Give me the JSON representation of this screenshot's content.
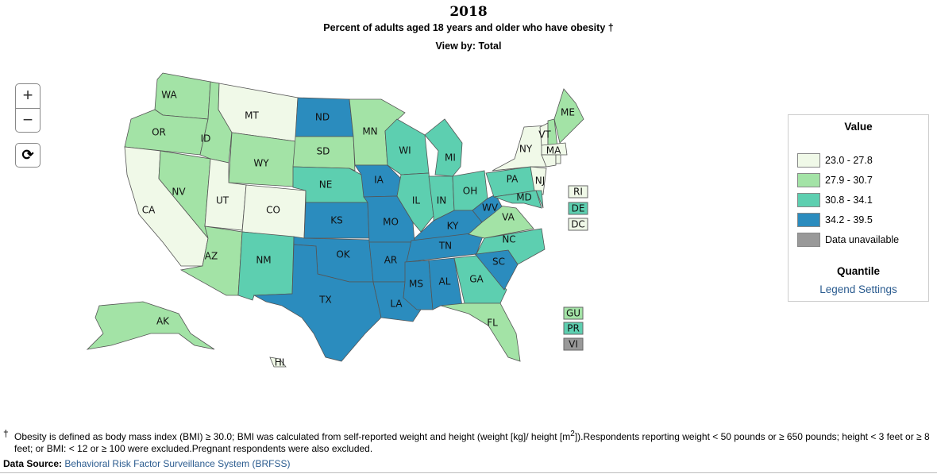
{
  "header": {
    "year": "2018",
    "subtitle": "Percent of adults aged 18 years and older who have obesity †",
    "view_by": "View by: Total"
  },
  "controls": {
    "zoom_in": "+",
    "zoom_out": "−",
    "reset": "⟳"
  },
  "legend": {
    "title": "Value",
    "bins": [
      {
        "label": "23.0 - 27.8",
        "color": "#f0f9e8"
      },
      {
        "label": "27.9 - 30.7",
        "color": "#a3e3a6"
      },
      {
        "label": "30.8 - 34.1",
        "color": "#5dcfb0"
      },
      {
        "label": "34.2 - 39.5",
        "color": "#2b8cbe"
      },
      {
        "label": "Data unavailable",
        "color": "#999999"
      }
    ],
    "method": "Quantile",
    "settings_link": "Legend Settings"
  },
  "states": [
    {
      "abbr": "WA",
      "bin": 1
    },
    {
      "abbr": "OR",
      "bin": 1
    },
    {
      "abbr": "CA",
      "bin": 0
    },
    {
      "abbr": "NV",
      "bin": 1
    },
    {
      "abbr": "ID",
      "bin": 1
    },
    {
      "abbr": "MT",
      "bin": 0
    },
    {
      "abbr": "WY",
      "bin": 1
    },
    {
      "abbr": "UT",
      "bin": 0
    },
    {
      "abbr": "CO",
      "bin": 0
    },
    {
      "abbr": "AZ",
      "bin": 1
    },
    {
      "abbr": "NM",
      "bin": 2
    },
    {
      "abbr": "ND",
      "bin": 3
    },
    {
      "abbr": "SD",
      "bin": 1
    },
    {
      "abbr": "NE",
      "bin": 2
    },
    {
      "abbr": "KS",
      "bin": 3
    },
    {
      "abbr": "OK",
      "bin": 3
    },
    {
      "abbr": "TX",
      "bin": 3
    },
    {
      "abbr": "MN",
      "bin": 1
    },
    {
      "abbr": "IA",
      "bin": 3
    },
    {
      "abbr": "MO",
      "bin": 3
    },
    {
      "abbr": "AR",
      "bin": 3
    },
    {
      "abbr": "LA",
      "bin": 3
    },
    {
      "abbr": "WI",
      "bin": 2
    },
    {
      "abbr": "IL",
      "bin": 2
    },
    {
      "abbr": "IN",
      "bin": 2
    },
    {
      "abbr": "MI",
      "bin": 2
    },
    {
      "abbr": "OH",
      "bin": 2
    },
    {
      "abbr": "KY",
      "bin": 3
    },
    {
      "abbr": "TN",
      "bin": 3
    },
    {
      "abbr": "MS",
      "bin": 3
    },
    {
      "abbr": "AL",
      "bin": 3
    },
    {
      "abbr": "GA",
      "bin": 2
    },
    {
      "abbr": "FL",
      "bin": 1
    },
    {
      "abbr": "SC",
      "bin": 3
    },
    {
      "abbr": "NC",
      "bin": 2
    },
    {
      "abbr": "VA",
      "bin": 1
    },
    {
      "abbr": "WV",
      "bin": 3
    },
    {
      "abbr": "PA",
      "bin": 2
    },
    {
      "abbr": "NY",
      "bin": 0
    },
    {
      "abbr": "NJ",
      "bin": 0
    },
    {
      "abbr": "MD",
      "bin": 2
    },
    {
      "abbr": "DE",
      "bin": 2
    },
    {
      "abbr": "VT",
      "bin": 0
    },
    {
      "abbr": "NH",
      "bin": 1
    },
    {
      "abbr": "ME",
      "bin": 1
    },
    {
      "abbr": "MA",
      "bin": 0
    },
    {
      "abbr": "CT",
      "bin": 0
    },
    {
      "abbr": "RI",
      "bin": 0
    },
    {
      "abbr": "AK",
      "bin": 1
    },
    {
      "abbr": "HI",
      "bin": 0
    }
  ],
  "territories": [
    {
      "abbr": "RI",
      "bin": 0
    },
    {
      "abbr": "DE",
      "bin": 2
    },
    {
      "abbr": "DC",
      "bin": 0
    },
    {
      "abbr": "GU",
      "bin": 1
    },
    {
      "abbr": "PR",
      "bin": 2
    },
    {
      "abbr": "VI",
      "bin": 4
    }
  ],
  "footnote": {
    "dagger": "†",
    "text_before": "Obesity is defined as body mass index (BMI) ≥ 30.0; BMI was calculated from self-reported weight and height (weight [kg]/ height [m",
    "superscript": "2",
    "text_after": "]).Respondents reporting weight < 50 pounds or ≥ 650 pounds; height < 3 feet or ≥ 8 feet; or BMI: < 12 or ≥ 100 were excluded.Pregnant respondents were also excluded."
  },
  "source": {
    "label": "Data Source:",
    "link": "Behavioral Risk Factor Surveillance System (BRFSS)"
  }
}
